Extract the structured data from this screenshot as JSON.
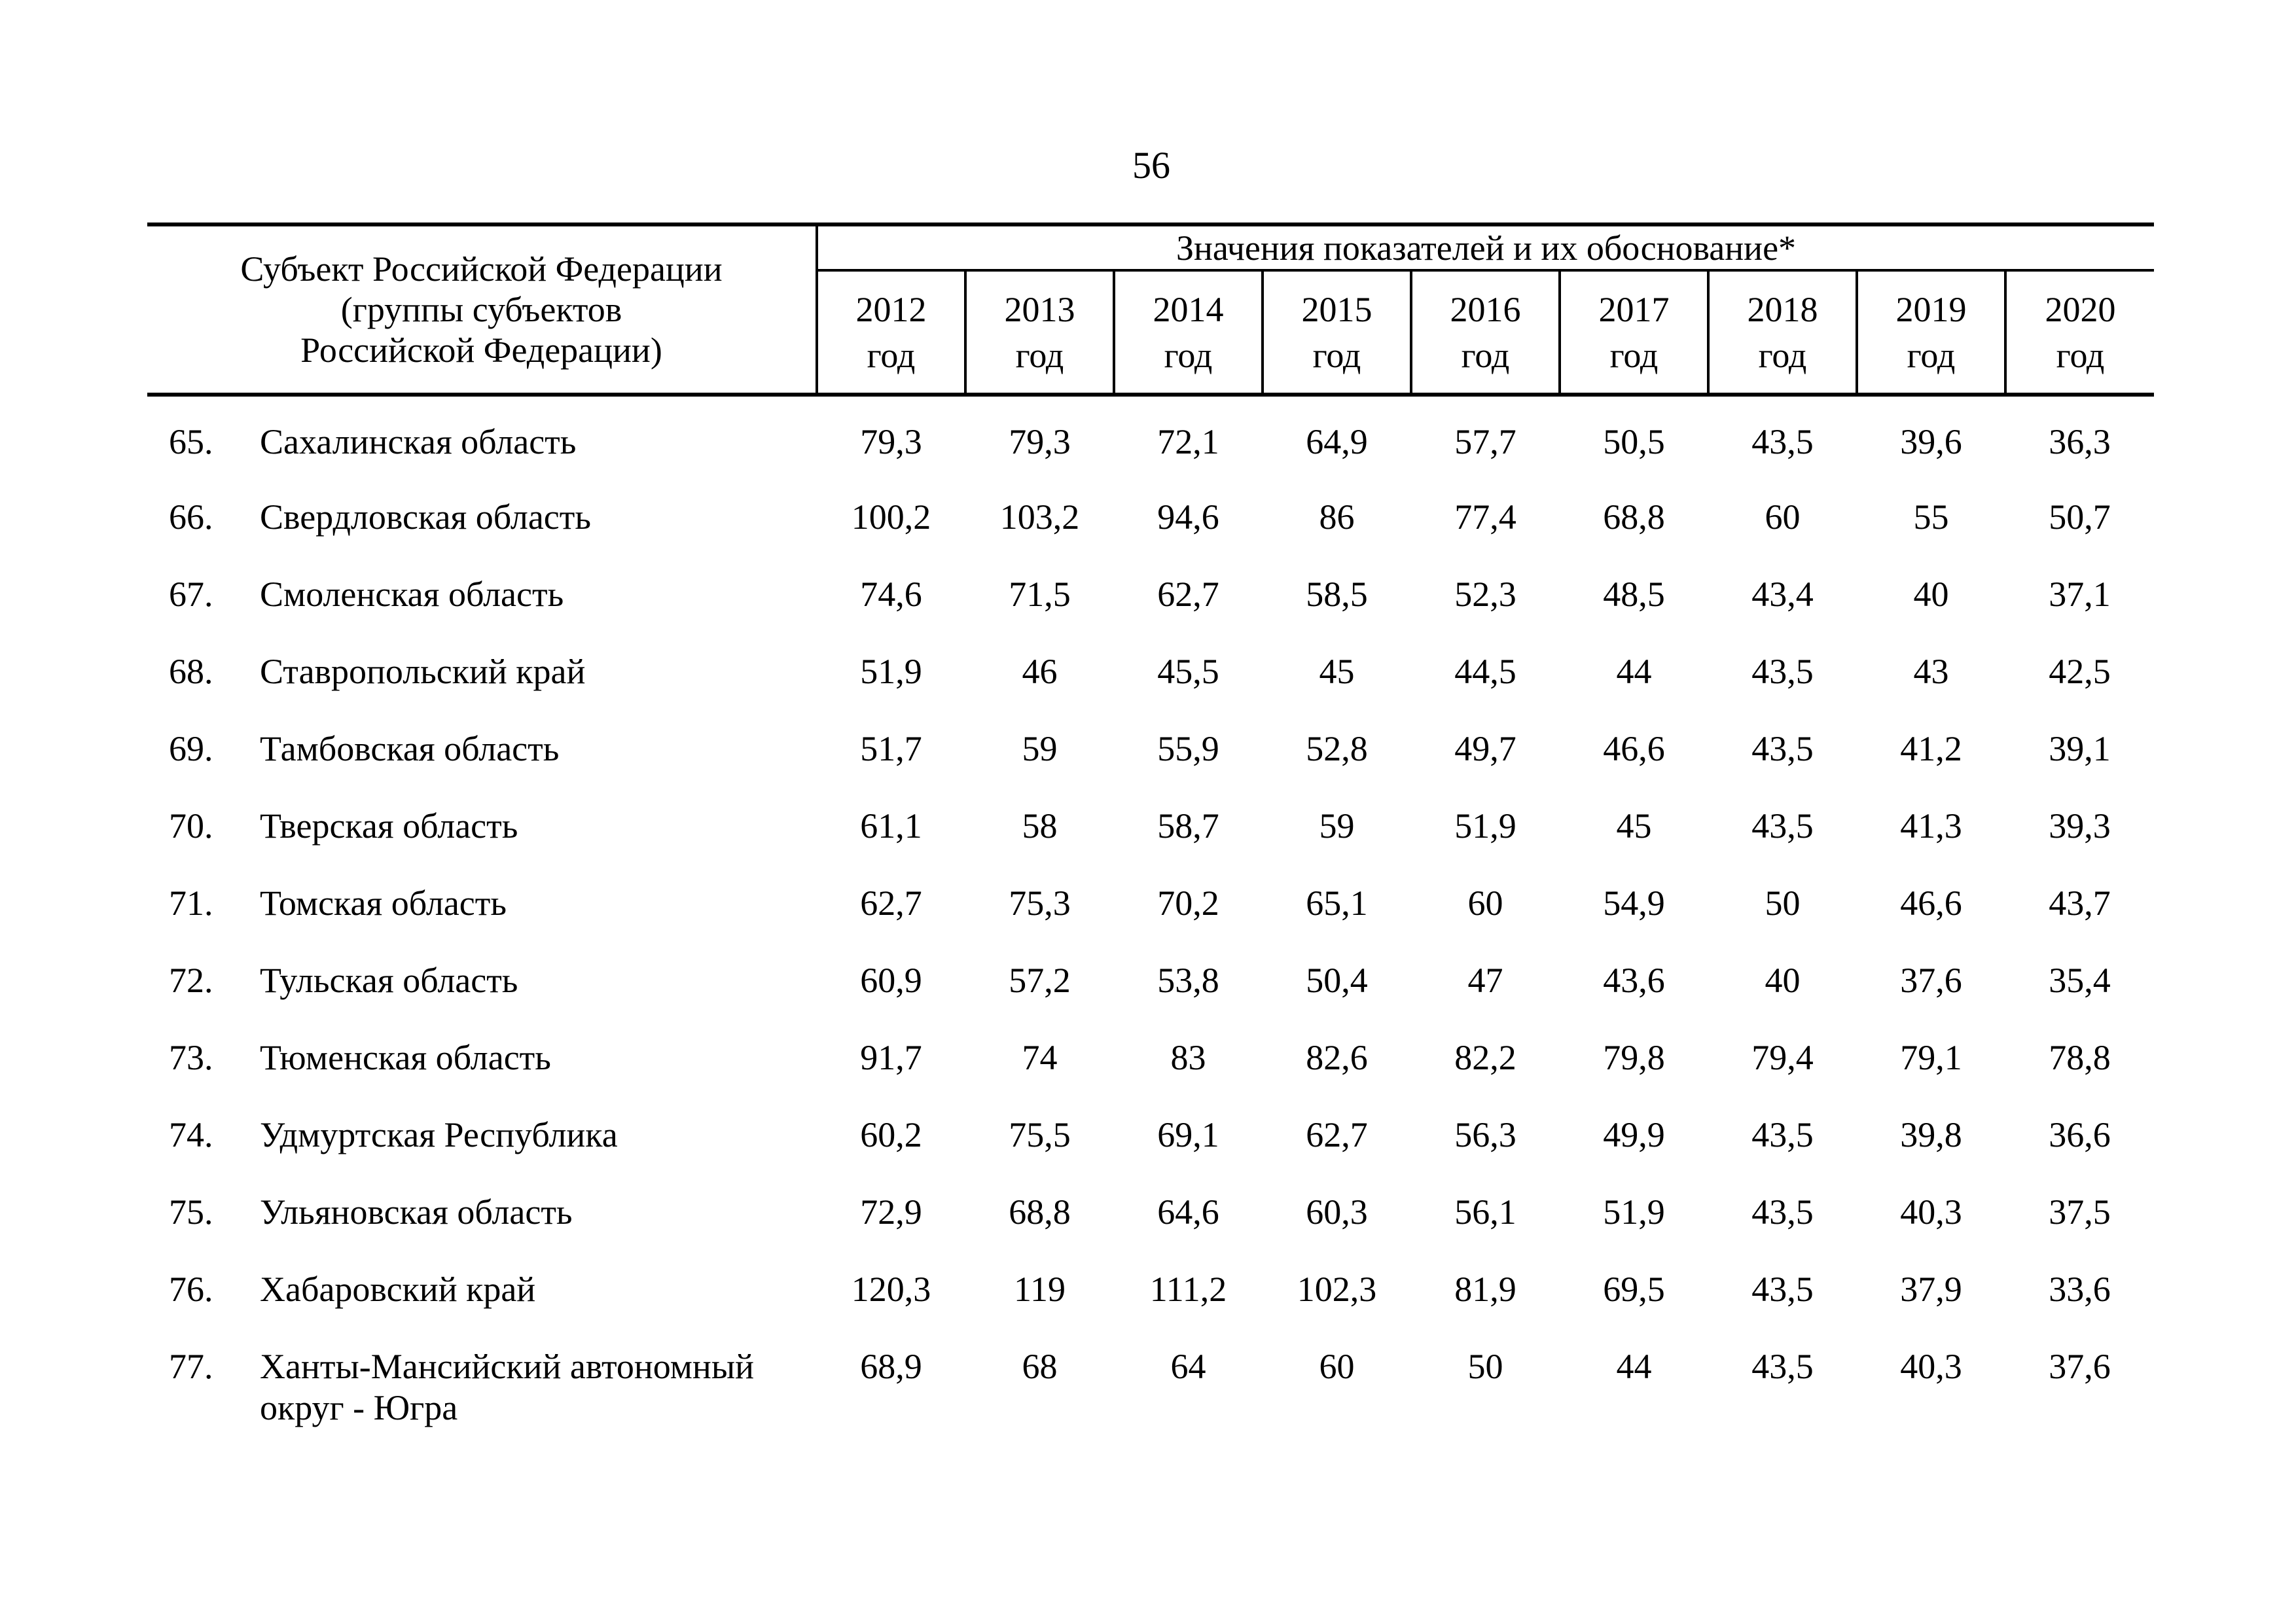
{
  "page": {
    "number": "56"
  },
  "colors": {
    "ink": "#000000",
    "paper": "#ffffff"
  },
  "table": {
    "header": {
      "subject_label": "Субъект Российской Федерации\n(группы субъектов\nРоссийской Федерации)",
      "values_label": "Значения показателей и их обоснование*",
      "years": [
        {
          "year": "2012",
          "unit": "год"
        },
        {
          "year": "2013",
          "unit": "год"
        },
        {
          "year": "2014",
          "unit": "год"
        },
        {
          "year": "2015",
          "unit": "год"
        },
        {
          "year": "2016",
          "unit": "год"
        },
        {
          "year": "2017",
          "unit": "год"
        },
        {
          "year": "2018",
          "unit": "год"
        },
        {
          "year": "2019",
          "unit": "год"
        },
        {
          "year": "2020",
          "unit": "год"
        }
      ]
    },
    "rows": [
      {
        "num": "65.",
        "name": "Сахалинская область",
        "values": [
          "79,3",
          "79,3",
          "72,1",
          "64,9",
          "57,7",
          "50,5",
          "43,5",
          "39,6",
          "36,3"
        ]
      },
      {
        "num": "66.",
        "name": "Свердловская область",
        "values": [
          "100,2",
          "103,2",
          "94,6",
          "86",
          "77,4",
          "68,8",
          "60",
          "55",
          "50,7"
        ]
      },
      {
        "num": "67.",
        "name": "Смоленская область",
        "values": [
          "74,6",
          "71,5",
          "62,7",
          "58,5",
          "52,3",
          "48,5",
          "43,4",
          "40",
          "37,1"
        ]
      },
      {
        "num": "68.",
        "name": "Ставропольский край",
        "values": [
          "51,9",
          "46",
          "45,5",
          "45",
          "44,5",
          "44",
          "43,5",
          "43",
          "42,5"
        ]
      },
      {
        "num": "69.",
        "name": "Тамбовская область",
        "values": [
          "51,7",
          "59",
          "55,9",
          "52,8",
          "49,7",
          "46,6",
          "43,5",
          "41,2",
          "39,1"
        ]
      },
      {
        "num": "70.",
        "name": "Тверская область",
        "values": [
          "61,1",
          "58",
          "58,7",
          "59",
          "51,9",
          "45",
          "43,5",
          "41,3",
          "39,3"
        ]
      },
      {
        "num": "71.",
        "name": "Томская область",
        "values": [
          "62,7",
          "75,3",
          "70,2",
          "65,1",
          "60",
          "54,9",
          "50",
          "46,6",
          "43,7"
        ]
      },
      {
        "num": "72.",
        "name": "Тульская область",
        "values": [
          "60,9",
          "57,2",
          "53,8",
          "50,4",
          "47",
          "43,6",
          "40",
          "37,6",
          "35,4"
        ]
      },
      {
        "num": "73.",
        "name": "Тюменская область",
        "values": [
          "91,7",
          "74",
          "83",
          "82,6",
          "82,2",
          "79,8",
          "79,4",
          "79,1",
          "78,8"
        ]
      },
      {
        "num": "74.",
        "name": "Удмуртская Республика",
        "values": [
          "60,2",
          "75,5",
          "69,1",
          "62,7",
          "56,3",
          "49,9",
          "43,5",
          "39,8",
          "36,6"
        ]
      },
      {
        "num": "75.",
        "name": "Ульяновская область",
        "values": [
          "72,9",
          "68,8",
          "64,6",
          "60,3",
          "56,1",
          "51,9",
          "43,5",
          "40,3",
          "37,5"
        ]
      },
      {
        "num": "76.",
        "name": "Хабаровский край",
        "values": [
          "120,3",
          "119",
          "111,2",
          "102,3",
          "81,9",
          "69,5",
          "43,5",
          "37,9",
          "33,6"
        ]
      },
      {
        "num": "77.",
        "name": "Ханты-Мансийский автономный округ - Югра",
        "values": [
          "68,9",
          "68",
          "64",
          "60",
          "50",
          "44",
          "43,5",
          "40,3",
          "37,6"
        ]
      }
    ]
  }
}
